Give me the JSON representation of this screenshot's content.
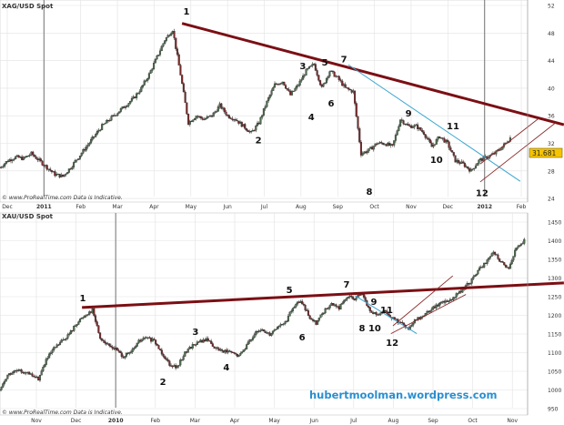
{
  "chart_data": [
    {
      "type": "candlestick",
      "title": "XAG/USD Spot",
      "footer": "© www.ProRealTime.com   Data is Indicative.",
      "x_tick_labels": [
        "Dec",
        "2011",
        "Feb",
        "Mar",
        "Apr",
        "May",
        "Jun",
        "Jul",
        "Aug",
        "Sep",
        "Oct",
        "Nov",
        "Dec",
        "2012",
        "Feb"
      ],
      "y_ticks": [
        52,
        48,
        44,
        40,
        36,
        32,
        28,
        24
      ],
      "ylim": [
        23,
        53
      ],
      "last_price": "31.681",
      "closes": [
        28.5,
        29.5,
        30,
        29.8,
        30.5,
        29.5,
        28.5,
        27.5,
        27.2,
        28.5,
        30,
        31.5,
        33,
        34.5,
        35.5,
        36.5,
        37.5,
        38.5,
        40,
        42,
        44.5,
        47,
        48.5,
        42,
        35,
        36,
        35.5,
        36,
        37.5,
        36,
        35.5,
        34.5,
        33.5,
        35,
        38,
        40.5,
        41,
        39,
        40.5,
        42.5,
        43.5,
        40,
        42.5,
        41.5,
        40,
        39.5,
        30.5,
        31,
        32,
        32,
        31.5,
        35.5,
        34.5,
        34.5,
        33.5,
        31.5,
        33,
        32,
        29.5,
        29,
        28,
        29.5,
        30,
        30.5,
        31.5,
        32.8
      ],
      "x_range_months": [
        -0.2,
        13.7
      ],
      "annotations": [
        {
          "label": "1",
          "m": 4.88,
          "v": 51.2
        },
        {
          "label": "2",
          "m": 6.84,
          "v": 32.5
        },
        {
          "label": "3",
          "m": 8.05,
          "v": 43.3
        },
        {
          "label": "4",
          "m": 8.28,
          "v": 35.9
        },
        {
          "label": "5",
          "m": 8.65,
          "v": 43.8
        },
        {
          "label": "6",
          "m": 8.82,
          "v": 37.9
        },
        {
          "label": "7",
          "m": 9.17,
          "v": 44.3
        },
        {
          "label": "8",
          "m": 9.86,
          "v": 25.1
        },
        {
          "label": "9",
          "m": 10.93,
          "v": 36.4
        },
        {
          "label": "10",
          "m": 11.69,
          "v": 29.7
        },
        {
          "label": "11",
          "m": 12.14,
          "v": 34.6
        },
        {
          "label": "12",
          "m": 12.93,
          "v": 24.9
        }
      ],
      "lines": [
        {
          "kind": "main-trendline",
          "color": "#7b0f14",
          "from": [
            4.76,
            49.4
          ],
          "to": [
            15.16,
            34.7
          ]
        },
        {
          "kind": "blue-trendline",
          "color": "#3aa6cf",
          "from": [
            9.29,
            43.4
          ],
          "to": [
            13.97,
            26.5
          ]
        },
        {
          "kind": "channel-lower",
          "color": "#8b2a2a",
          "from": [
            12.88,
            26.4
          ],
          "to": [
            14.94,
            35.0
          ]
        },
        {
          "kind": "channel-upper",
          "color": "#8b2a2a",
          "from": [
            12.88,
            29.0
          ],
          "to": [
            14.47,
            35.6
          ]
        }
      ]
    },
    {
      "type": "candlestick",
      "title": "XAU/USD Spot",
      "footer": "© www.ProRealTime.com   Data is Indicative.",
      "x_tick_labels": [
        "Nov",
        "Dec",
        "2010",
        "Feb",
        "Mar",
        "Apr",
        "May",
        "Jun",
        "Jul",
        "Aug",
        "Sep",
        "Oct",
        "Nov"
      ],
      "y_ticks": [
        1450,
        1400,
        1350,
        1300,
        1250,
        1200,
        1150,
        1100,
        1050,
        1000,
        950
      ],
      "ylim": [
        935,
        1465
      ],
      "closes": [
        1000,
        1040,
        1050,
        1050,
        1040,
        1030,
        1080,
        1110,
        1130,
        1150,
        1180,
        1200,
        1215,
        1140,
        1120,
        1110,
        1090,
        1100,
        1130,
        1140,
        1130,
        1100,
        1070,
        1060,
        1100,
        1120,
        1130,
        1135,
        1110,
        1105,
        1100,
        1090,
        1120,
        1150,
        1160,
        1150,
        1170,
        1180,
        1220,
        1240,
        1200,
        1180,
        1210,
        1230,
        1220,
        1250,
        1245,
        1255,
        1210,
        1200,
        1210,
        1190,
        1180,
        1160,
        1190,
        1200,
        1220,
        1230,
        1240,
        1250,
        1270,
        1290,
        1320,
        1340,
        1370,
        1340,
        1330,
        1380,
        1400
      ],
      "x_range_months": [
        -0.92,
        12.3
      ],
      "annotations": [
        {
          "label": "1",
          "m": 1.17,
          "v": 1247
        },
        {
          "label": "2",
          "m": 3.19,
          "v": 1023
        },
        {
          "label": "3",
          "m": 4.01,
          "v": 1157
        },
        {
          "label": "4",
          "m": 4.79,
          "v": 1062
        },
        {
          "label": "5",
          "m": 6.38,
          "v": 1270
        },
        {
          "label": "6",
          "m": 6.7,
          "v": 1143
        },
        {
          "label": "7",
          "m": 7.82,
          "v": 1284
        },
        {
          "label": "8",
          "m": 8.21,
          "v": 1167
        },
        {
          "label": "9",
          "m": 8.51,
          "v": 1238
        },
        {
          "label": "10",
          "m": 8.53,
          "v": 1167
        },
        {
          "label": "11",
          "m": 8.83,
          "v": 1216
        },
        {
          "label": "12",
          "m": 8.97,
          "v": 1128
        }
      ],
      "lines": [
        {
          "kind": "main-trendline",
          "color": "#7b0f14",
          "from": [
            1.15,
            1221
          ],
          "to": [
            13.3,
            1287
          ]
        },
        {
          "kind": "blue-trendline",
          "color": "#3aa6cf",
          "from": [
            8.03,
            1253
          ],
          "to": [
            9.59,
            1151
          ]
        },
        {
          "kind": "channel-lower",
          "color": "#8b2a2a",
          "from": [
            8.94,
            1151
          ],
          "to": [
            10.83,
            1256
          ]
        },
        {
          "kind": "channel-upper",
          "color": "#8b2a2a",
          "from": [
            8.99,
            1172
          ],
          "to": [
            10.5,
            1306
          ]
        }
      ],
      "watermark": "hubertmoolman.wordpress.com"
    }
  ]
}
